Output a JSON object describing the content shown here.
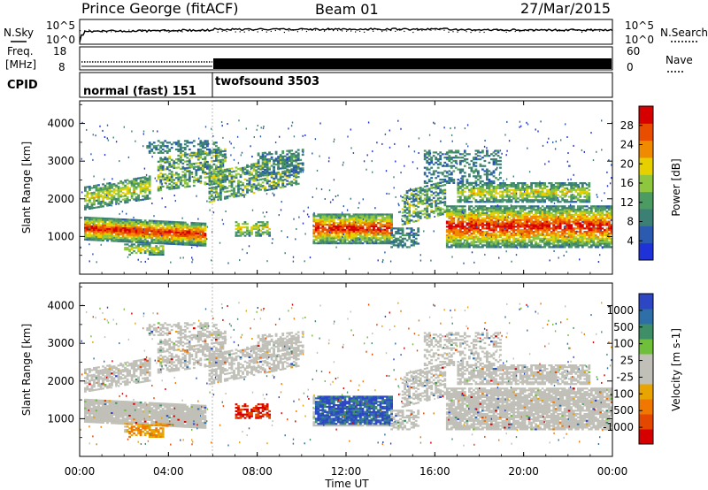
{
  "header": {
    "station": "Prince George (fitACF)",
    "beam": "Beam 01",
    "date": "27/Mar/2015"
  },
  "strip_panels": {
    "nsky": {
      "left_label": "N.Sky",
      "right_label": "N.Search",
      "left_ticks": [
        "10^5",
        "10^0"
      ],
      "right_ticks": [
        "10^5",
        "10^0"
      ]
    },
    "freq": {
      "left_label_1": "Freq.",
      "left_label_2": "[MHz]",
      "right_label": "Nave",
      "left_ticks": [
        "18",
        "8"
      ],
      "right_ticks": [
        "60",
        "0"
      ]
    },
    "cpid": {
      "label": "CPID",
      "modes": [
        {
          "name": "normal (fast) 151",
          "start_hr": 0,
          "end_hr": 6
        },
        {
          "name": "twofsound 3503",
          "start_hr": 6,
          "end_hr": 24
        }
      ]
    }
  },
  "x_axis": {
    "label": "Time UT",
    "ticks": [
      "00:00",
      "04:00",
      "08:00",
      "12:00",
      "16:00",
      "20:00",
      "00:00"
    ]
  },
  "colors": {
    "power_scale": [
      "#1f32d8",
      "#2a5bb0",
      "#3c7f74",
      "#4c9b62",
      "#8fc640",
      "#e6d000",
      "#f08a00",
      "#e84d00",
      "#d60000"
    ],
    "velocity_scale": [
      "#2c46c4",
      "#2e6fa8",
      "#3e8e68",
      "#6fbf3a",
      "#c0c0b8",
      "#c0c0b8",
      "#e8a400",
      "#f07800",
      "#e44800",
      "#d60000"
    ]
  },
  "chart_data": [
    {
      "type": "heatmap",
      "panel": "power",
      "xlabel": "Time UT",
      "ylabel": "Slant Range [km]",
      "xlim": [
        0,
        24
      ],
      "ylim": [
        0,
        4600
      ],
      "yticks": [
        "1000",
        "2000",
        "3000",
        "4000"
      ],
      "colorbar_label": "Power [dB]",
      "colorbar_ticks": [
        "4",
        "8",
        "12",
        "16",
        "20",
        "24",
        "28"
      ],
      "clim": [
        0,
        32
      ]
    },
    {
      "type": "heatmap",
      "panel": "velocity",
      "xlabel": "Time UT",
      "ylabel": "Slant Range [km]",
      "xlim": [
        0,
        24
      ],
      "ylim": [
        0,
        4600
      ],
      "yticks": [
        "1000",
        "2000",
        "3000",
        "4000"
      ],
      "colorbar_label": "Velocity [m s-1]",
      "colorbar_ticks": [
        "1000",
        "500",
        "100",
        "25",
        "-25",
        "-100",
        "-500",
        "-1000"
      ]
    }
  ]
}
